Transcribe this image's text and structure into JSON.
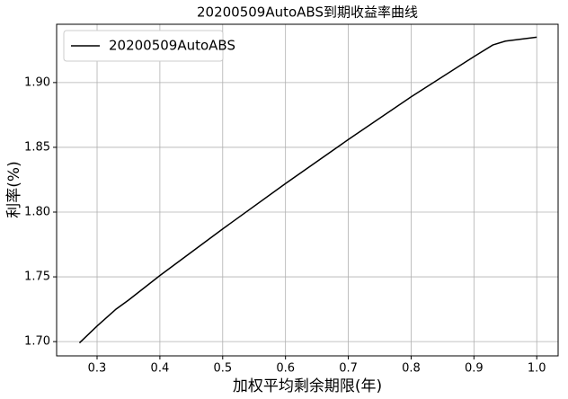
{
  "chart_data": {
    "type": "line",
    "title": "20200509AutoABS到期收益率曲线",
    "x_label": "加权平均剩余期限(年)",
    "y_label": "利率(%)",
    "x": [
      0.272,
      0.3,
      0.33,
      0.35,
      0.4,
      0.5,
      0.6,
      0.7,
      0.8,
      0.9,
      0.93,
      0.95,
      1.0
    ],
    "series": [
      {
        "name": "20200509AutoABS",
        "color": "#000000",
        "values": [
          1.699,
          1.712,
          1.725,
          1.732,
          1.751,
          1.787,
          1.822,
          1.856,
          1.889,
          1.92,
          1.929,
          1.932,
          1.935
        ]
      }
    ],
    "xlim": [
      0.2356,
      1.034
    ],
    "ylim": [
      1.689,
      1.945
    ],
    "xticks": [
      0.3,
      0.4,
      0.5,
      0.6,
      0.7,
      0.8,
      0.9,
      {
        "value": 1.0,
        "label": "1.0"
      }
    ],
    "yticks": [
      {
        "value": 1.7,
        "label": "1.70"
      },
      1.75,
      {
        "value": 1.8,
        "label": "1.80"
      },
      1.85,
      {
        "value": 1.9,
        "label": "1.90"
      }
    ],
    "grid": true,
    "legend": "upper-left"
  }
}
